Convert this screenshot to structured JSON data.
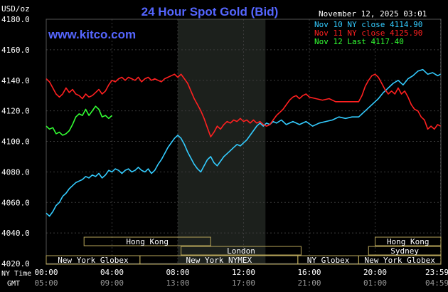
{
  "chart_data": {
    "type": "line",
    "title": "24 Hour Spot Gold (Bid)",
    "site": "www.kitco.com",
    "date": "November 12, 2025 03:01",
    "y_unit": "USD/oz",
    "ylim": [
      4020,
      4180
    ],
    "y_ticks": [
      "4180.0",
      "4160.0",
      "4140.0",
      "4120.0",
      "4100.0",
      "4080.0",
      "4060.0",
      "4040.0",
      "4020.0"
    ],
    "x_tick_labels": [
      "00:00",
      "04:00",
      "08:00",
      "12:00",
      "16:00",
      "20:00",
      "23:59"
    ],
    "gmt_tick_labels": [
      "05:00",
      "09:00",
      "13:00",
      "17:00",
      "21:00",
      "01:00",
      "04:59"
    ],
    "x_axis_names": [
      "NY Time",
      "GMT"
    ],
    "highlight_band": [
      "08:00",
      "13:20"
    ],
    "legend": [
      "Nov 10 NY close 4114.90",
      "Nov 11 NY close 4125.90",
      "Nov 12 Last 4117.40"
    ],
    "colors": {
      "nov10": "#33ccff",
      "nov11": "#ff2020",
      "nov12": "#33ff33",
      "title": "#5566ff",
      "axis_text": "#ffffff",
      "band": "#1c201c",
      "grid": "#3a3a3a"
    },
    "series": [
      {
        "name": "Nov 10",
        "color": "#33ccff",
        "points": [
          [
            0.0,
            4053
          ],
          [
            0.2,
            4051
          ],
          [
            0.4,
            4054
          ],
          [
            0.6,
            4058
          ],
          [
            0.8,
            4060
          ],
          [
            1.0,
            4064
          ],
          [
            1.2,
            4066
          ],
          [
            1.4,
            4069
          ],
          [
            1.6,
            4071
          ],
          [
            1.8,
            4073
          ],
          [
            2.0,
            4074
          ],
          [
            2.2,
            4075
          ],
          [
            2.4,
            4077
          ],
          [
            2.6,
            4076
          ],
          [
            2.8,
            4078
          ],
          [
            3.0,
            4077
          ],
          [
            3.2,
            4079
          ],
          [
            3.4,
            4076
          ],
          [
            3.6,
            4078
          ],
          [
            3.8,
            4081
          ],
          [
            4.0,
            4080
          ],
          [
            4.2,
            4082
          ],
          [
            4.4,
            4081
          ],
          [
            4.6,
            4079
          ],
          [
            4.8,
            4081
          ],
          [
            5.0,
            4082
          ],
          [
            5.2,
            4080
          ],
          [
            5.4,
            4081
          ],
          [
            5.6,
            4083
          ],
          [
            5.8,
            4081
          ],
          [
            6.0,
            4080
          ],
          [
            6.2,
            4082
          ],
          [
            6.4,
            4079
          ],
          [
            6.6,
            4081
          ],
          [
            6.8,
            4085
          ],
          [
            7.0,
            4088
          ],
          [
            7.2,
            4092
          ],
          [
            7.4,
            4096
          ],
          [
            7.6,
            4099
          ],
          [
            7.8,
            4102
          ],
          [
            8.0,
            4104
          ],
          [
            8.2,
            4102
          ],
          [
            8.4,
            4098
          ],
          [
            8.6,
            4093
          ],
          [
            8.8,
            4089
          ],
          [
            9.0,
            4085
          ],
          [
            9.2,
            4082
          ],
          [
            9.4,
            4080
          ],
          [
            9.6,
            4084
          ],
          [
            9.8,
            4088
          ],
          [
            10.0,
            4090
          ],
          [
            10.2,
            4086
          ],
          [
            10.4,
            4084
          ],
          [
            10.6,
            4087
          ],
          [
            10.8,
            4090
          ],
          [
            11.0,
            4092
          ],
          [
            11.2,
            4094
          ],
          [
            11.4,
            4096
          ],
          [
            11.6,
            4098
          ],
          [
            11.8,
            4097
          ],
          [
            12.0,
            4099
          ],
          [
            12.2,
            4101
          ],
          [
            12.4,
            4104
          ],
          [
            12.6,
            4107
          ],
          [
            12.8,
            4110
          ],
          [
            13.0,
            4112
          ],
          [
            13.2,
            4110
          ],
          [
            13.4,
            4112
          ],
          [
            13.6,
            4111
          ],
          [
            13.8,
            4113
          ],
          [
            14.0,
            4112
          ],
          [
            14.3,
            4114
          ],
          [
            14.6,
            4111
          ],
          [
            15.0,
            4113
          ],
          [
            15.4,
            4111
          ],
          [
            15.8,
            4113
          ],
          [
            16.2,
            4110
          ],
          [
            16.6,
            4112
          ],
          [
            17.0,
            4113
          ],
          [
            17.4,
            4114
          ],
          [
            17.8,
            4116
          ],
          [
            18.2,
            4115
          ],
          [
            18.6,
            4116
          ],
          [
            19.0,
            4116
          ],
          [
            19.3,
            4119
          ],
          [
            19.6,
            4122
          ],
          [
            19.9,
            4125
          ],
          [
            20.2,
            4128
          ],
          [
            20.5,
            4132
          ],
          [
            20.8,
            4135
          ],
          [
            21.1,
            4138
          ],
          [
            21.4,
            4140
          ],
          [
            21.7,
            4137
          ],
          [
            22.0,
            4141
          ],
          [
            22.3,
            4143
          ],
          [
            22.6,
            4146
          ],
          [
            22.9,
            4147
          ],
          [
            23.2,
            4144
          ],
          [
            23.5,
            4145
          ],
          [
            23.8,
            4143
          ],
          [
            23.98,
            4144
          ]
        ]
      },
      {
        "name": "Nov 11",
        "color": "#ff2020",
        "points": [
          [
            0.0,
            4141
          ],
          [
            0.2,
            4139
          ],
          [
            0.4,
            4135
          ],
          [
            0.6,
            4131
          ],
          [
            0.8,
            4129
          ],
          [
            1.0,
            4131
          ],
          [
            1.2,
            4135
          ],
          [
            1.4,
            4132
          ],
          [
            1.6,
            4134
          ],
          [
            1.8,
            4131
          ],
          [
            2.0,
            4130
          ],
          [
            2.2,
            4128
          ],
          [
            2.4,
            4131
          ],
          [
            2.6,
            4129
          ],
          [
            2.8,
            4130
          ],
          [
            3.0,
            4132
          ],
          [
            3.2,
            4134
          ],
          [
            3.4,
            4131
          ],
          [
            3.6,
            4133
          ],
          [
            3.8,
            4137
          ],
          [
            4.0,
            4140
          ],
          [
            4.2,
            4139
          ],
          [
            4.4,
            4141
          ],
          [
            4.6,
            4142
          ],
          [
            4.8,
            4140
          ],
          [
            5.0,
            4142
          ],
          [
            5.2,
            4141
          ],
          [
            5.4,
            4140
          ],
          [
            5.6,
            4142
          ],
          [
            5.8,
            4139
          ],
          [
            6.0,
            4141
          ],
          [
            6.2,
            4142
          ],
          [
            6.4,
            4140
          ],
          [
            6.6,
            4141
          ],
          [
            6.8,
            4140
          ],
          [
            7.0,
            4139
          ],
          [
            7.2,
            4141
          ],
          [
            7.4,
            4142
          ],
          [
            7.6,
            4143
          ],
          [
            7.8,
            4144
          ],
          [
            8.0,
            4142
          ],
          [
            8.2,
            4144
          ],
          [
            8.4,
            4141
          ],
          [
            8.6,
            4138
          ],
          [
            8.8,
            4133
          ],
          [
            9.0,
            4128
          ],
          [
            9.2,
            4124
          ],
          [
            9.4,
            4120
          ],
          [
            9.6,
            4115
          ],
          [
            9.8,
            4109
          ],
          [
            10.0,
            4103
          ],
          [
            10.2,
            4106
          ],
          [
            10.4,
            4110
          ],
          [
            10.6,
            4108
          ],
          [
            10.8,
            4111
          ],
          [
            11.0,
            4113
          ],
          [
            11.2,
            4112
          ],
          [
            11.4,
            4114
          ],
          [
            11.6,
            4113
          ],
          [
            11.8,
            4115
          ],
          [
            12.0,
            4113
          ],
          [
            12.2,
            4114
          ],
          [
            12.4,
            4112
          ],
          [
            12.6,
            4114
          ],
          [
            12.8,
            4112
          ],
          [
            13.0,
            4113
          ],
          [
            13.2,
            4111
          ],
          [
            13.4,
            4110
          ],
          [
            13.6,
            4111
          ],
          [
            13.8,
            4114
          ],
          [
            14.0,
            4117
          ],
          [
            14.2,
            4119
          ],
          [
            14.4,
            4121
          ],
          [
            14.6,
            4124
          ],
          [
            14.8,
            4127
          ],
          [
            15.0,
            4129
          ],
          [
            15.2,
            4130
          ],
          [
            15.4,
            4128
          ],
          [
            15.6,
            4130
          ],
          [
            15.8,
            4131
          ],
          [
            16.0,
            4129
          ],
          [
            16.4,
            4128
          ],
          [
            16.8,
            4127
          ],
          [
            17.2,
            4128
          ],
          [
            17.6,
            4126
          ],
          [
            18.0,
            4126
          ],
          [
            18.4,
            4126
          ],
          [
            18.8,
            4126
          ],
          [
            19.0,
            4126
          ],
          [
            19.2,
            4130
          ],
          [
            19.4,
            4136
          ],
          [
            19.6,
            4140
          ],
          [
            19.8,
            4143
          ],
          [
            20.0,
            4144
          ],
          [
            20.2,
            4142
          ],
          [
            20.4,
            4138
          ],
          [
            20.6,
            4134
          ],
          [
            20.8,
            4131
          ],
          [
            21.0,
            4133
          ],
          [
            21.2,
            4131
          ],
          [
            21.4,
            4135
          ],
          [
            21.6,
            4131
          ],
          [
            21.8,
            4133
          ],
          [
            22.0,
            4129
          ],
          [
            22.2,
            4124
          ],
          [
            22.4,
            4121
          ],
          [
            22.6,
            4120
          ],
          [
            22.8,
            4116
          ],
          [
            23.0,
            4114
          ],
          [
            23.2,
            4108
          ],
          [
            23.4,
            4110
          ],
          [
            23.6,
            4108
          ],
          [
            23.8,
            4111
          ],
          [
            23.98,
            4110
          ]
        ]
      },
      {
        "name": "Nov 12",
        "color": "#33ff33",
        "points": [
          [
            0.0,
            4110
          ],
          [
            0.2,
            4108
          ],
          [
            0.4,
            4109
          ],
          [
            0.6,
            4105
          ],
          [
            0.8,
            4106
          ],
          [
            1.0,
            4104
          ],
          [
            1.2,
            4105
          ],
          [
            1.4,
            4107
          ],
          [
            1.6,
            4111
          ],
          [
            1.8,
            4116
          ],
          [
            2.0,
            4118
          ],
          [
            2.2,
            4117
          ],
          [
            2.4,
            4121
          ],
          [
            2.6,
            4117
          ],
          [
            2.8,
            4120
          ],
          [
            3.0,
            4123
          ],
          [
            3.2,
            4121
          ],
          [
            3.4,
            4116
          ],
          [
            3.6,
            4117
          ],
          [
            3.8,
            4115
          ],
          [
            4.0,
            4117
          ]
        ]
      }
    ],
    "sessions": [
      {
        "label": "Hong Kong",
        "start": 2.3,
        "end": 10.0,
        "row": 0
      },
      {
        "label": "Hong Kong",
        "start": 20.0,
        "end": 24.0,
        "row": 0
      },
      {
        "label": "London",
        "start": 8.2,
        "end": 15.5,
        "row": 1
      },
      {
        "label": "Sydney",
        "start": 19.6,
        "end": 24.0,
        "row": 1
      },
      {
        "label": "New York Globex",
        "start": 0.0,
        "end": 5.7,
        "row": 2
      },
      {
        "label": "New York NYMEX",
        "start": 5.7,
        "end": 15.3,
        "row": 2
      },
      {
        "label": "NY Globex",
        "start": 15.3,
        "end": 19.0,
        "row": 2
      },
      {
        "label": "New York Globex",
        "start": 19.0,
        "end": 24.0,
        "row": 2
      }
    ]
  }
}
